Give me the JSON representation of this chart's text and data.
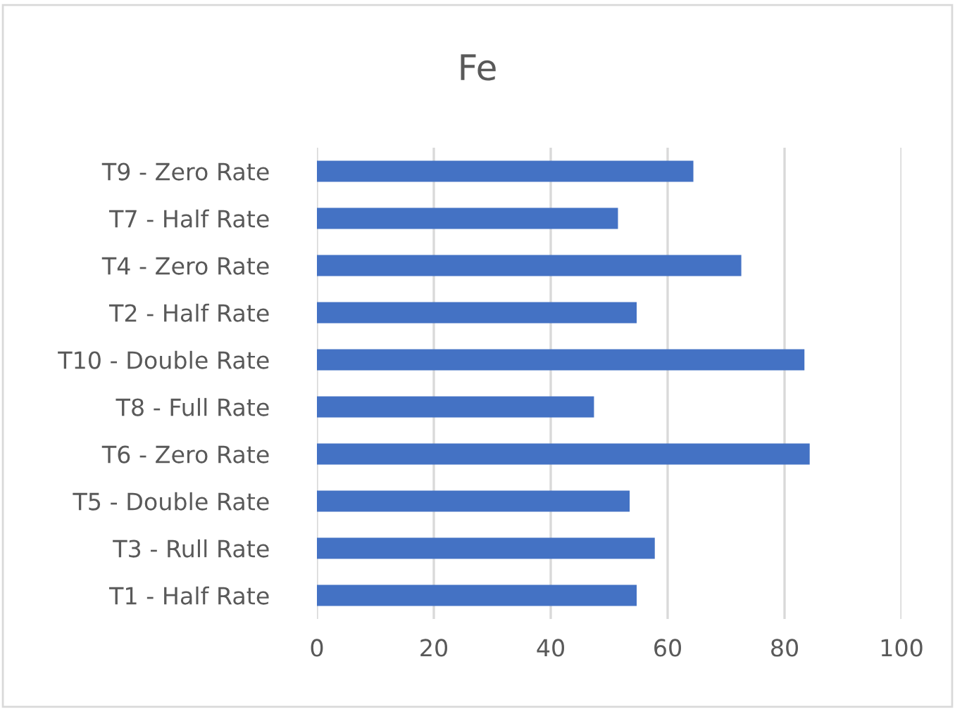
{
  "chart_data": {
    "type": "bar",
    "orientation": "horizontal",
    "title": "Fe",
    "categories": [
      "T9 - Zero Rate",
      "T7 - Half Rate",
      "T4 - Zero Rate",
      "T2 - Half Rate",
      "T10 - Double Rate",
      "T8 - Full Rate",
      "T6 - Zero Rate",
      "T5 - Double Rate",
      "T3 - Rull Rate",
      "T1 - Half Rate"
    ],
    "values": [
      64.4,
      51.5,
      72.6,
      54.7,
      83.4,
      47.4,
      84.3,
      53.5,
      57.8,
      54.7
    ],
    "color": "#4472c4",
    "xlim": [
      0,
      100
    ],
    "xticks": [
      0,
      20,
      40,
      60,
      80,
      100
    ],
    "grid": "x",
    "legend": false
  }
}
